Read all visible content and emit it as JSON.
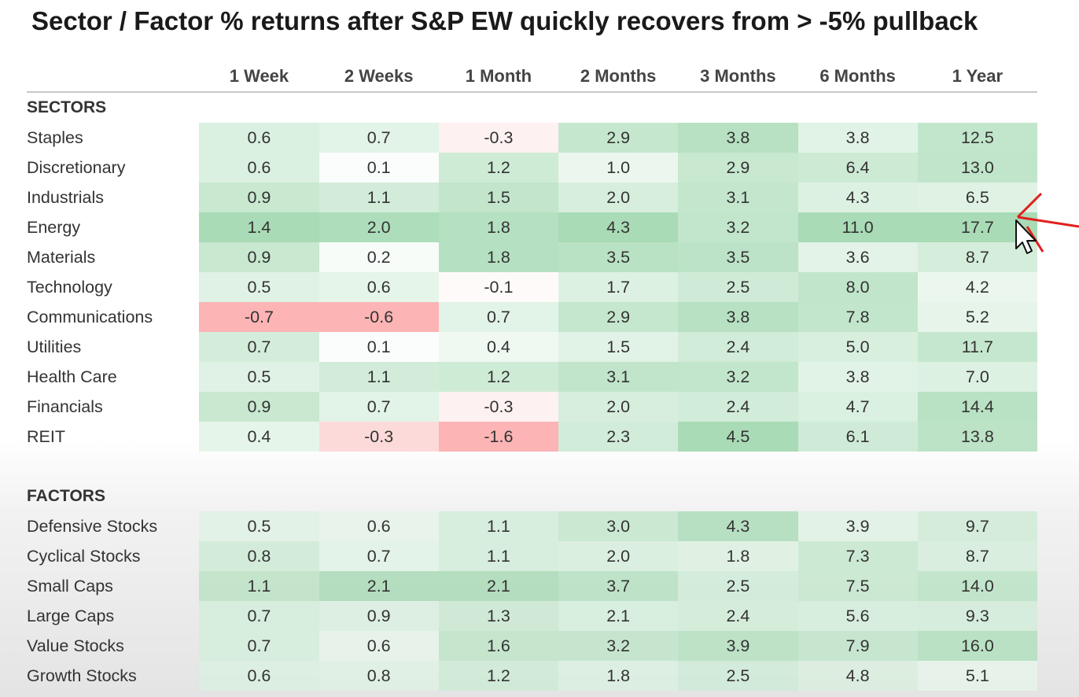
{
  "title": "Sector / Factor % returns after S&P EW quickly recovers from > -5% pullback",
  "chart_data": {
    "type": "heatmap",
    "title": "Sector / Factor % returns after S&P EW quickly recovers from > -5% pullback",
    "columns": [
      "1 Week",
      "2 Weeks",
      "1 Month",
      "2 Months",
      "3 Months",
      "6 Months",
      "1 Year"
    ],
    "sections": [
      {
        "name": "SECTORS",
        "rows": [
          {
            "label": "Staples",
            "values": [
              0.6,
              0.7,
              -0.3,
              2.9,
              3.8,
              3.8,
              12.5
            ]
          },
          {
            "label": "Discretionary",
            "values": [
              0.6,
              0.1,
              1.2,
              1.0,
              2.9,
              6.4,
              13.0
            ]
          },
          {
            "label": "Industrials",
            "values": [
              0.9,
              1.1,
              1.5,
              2.0,
              3.1,
              4.3,
              6.5
            ]
          },
          {
            "label": "Energy",
            "values": [
              1.4,
              2.0,
              1.8,
              4.3,
              3.2,
              11.0,
              17.7
            ]
          },
          {
            "label": "Materials",
            "values": [
              0.9,
              0.2,
              1.8,
              3.5,
              3.5,
              3.6,
              8.7
            ]
          },
          {
            "label": "Technology",
            "values": [
              0.5,
              0.6,
              -0.1,
              1.7,
              2.5,
              8.0,
              4.2
            ]
          },
          {
            "label": "Communications",
            "values": [
              -0.7,
              -0.6,
              0.7,
              2.9,
              3.8,
              7.8,
              5.2
            ]
          },
          {
            "label": "Utilities",
            "values": [
              0.7,
              0.1,
              0.4,
              1.5,
              2.4,
              5.0,
              11.7
            ]
          },
          {
            "label": "Health Care",
            "values": [
              0.5,
              1.1,
              1.2,
              3.1,
              3.2,
              3.8,
              7.0
            ]
          },
          {
            "label": "Financials",
            "values": [
              0.9,
              0.7,
              -0.3,
              2.0,
              2.4,
              4.7,
              14.4
            ]
          },
          {
            "label": "REIT",
            "values": [
              0.4,
              -0.3,
              -1.6,
              2.3,
              4.5,
              6.1,
              13.8
            ]
          }
        ]
      },
      {
        "name": "FACTORS",
        "rows": [
          {
            "label": "Defensive Stocks",
            "values": [
              0.5,
              0.6,
              1.1,
              3.0,
              4.3,
              3.9,
              9.7
            ]
          },
          {
            "label": "Cyclical Stocks",
            "values": [
              0.8,
              0.7,
              1.1,
              2.0,
              1.8,
              7.3,
              8.7
            ]
          },
          {
            "label": "Small Caps",
            "values": [
              1.1,
              2.1,
              2.1,
              3.7,
              2.5,
              7.5,
              14.0
            ]
          },
          {
            "label": "Large Caps",
            "values": [
              0.7,
              0.9,
              1.3,
              2.1,
              2.4,
              5.6,
              9.3
            ]
          },
          {
            "label": "Value Stocks",
            "values": [
              0.7,
              0.6,
              1.6,
              3.2,
              3.9,
              7.9,
              16.0
            ]
          },
          {
            "label": "Growth Stocks",
            "values": [
              0.6,
              0.8,
              1.2,
              1.8,
              2.5,
              4.8,
              5.1
            ]
          }
        ]
      }
    ],
    "colors": {
      "positive": "#63be7b",
      "negative": "#f8696b",
      "neutral": "#ffffff"
    }
  }
}
